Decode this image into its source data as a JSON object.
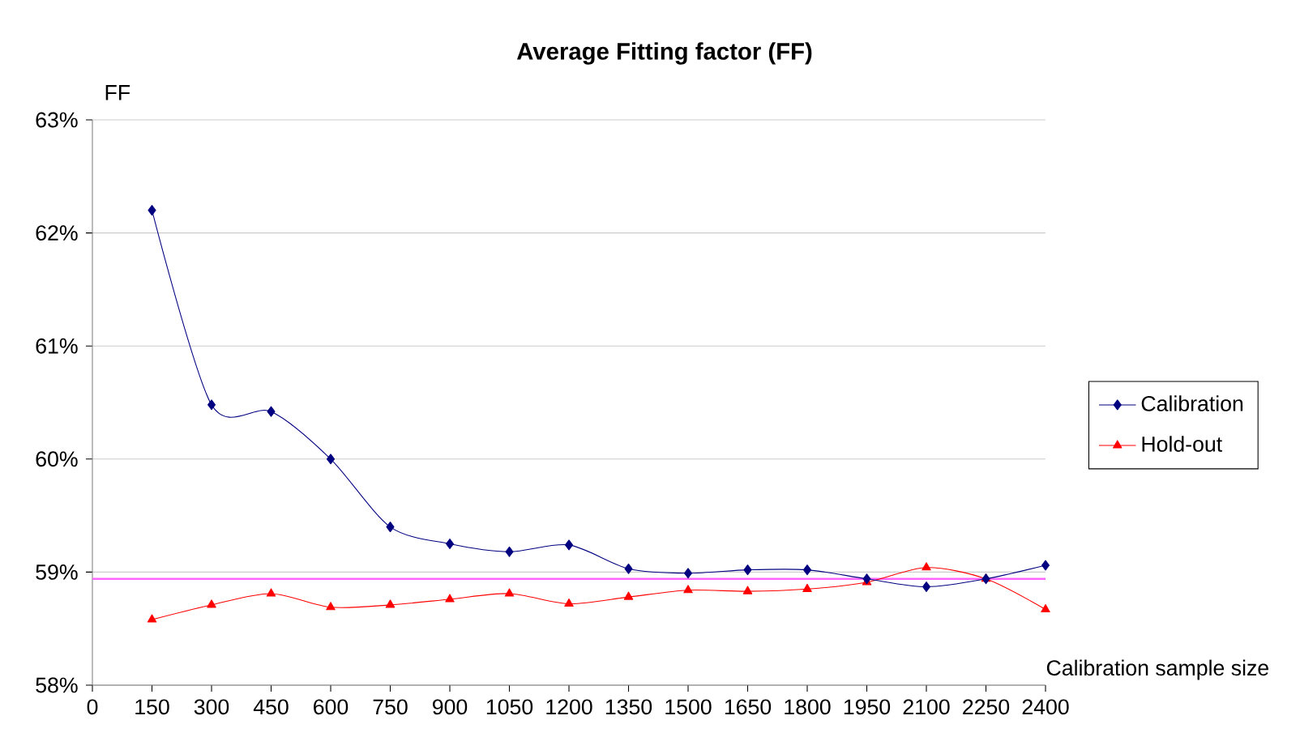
{
  "chart_data": {
    "type": "line",
    "title": "Average Fitting factor (FF)",
    "xlabel": "Calibration sample size",
    "ylabel": "FF",
    "x": [
      150,
      300,
      450,
      600,
      750,
      900,
      1050,
      1200,
      1350,
      1500,
      1650,
      1800,
      1950,
      2100,
      2250,
      2400
    ],
    "series": [
      {
        "name": "Calibration",
        "color": "#000080",
        "marker": "diamond",
        "values": [
          62.2,
          60.48,
          60.42,
          60.0,
          59.4,
          59.25,
          59.18,
          59.24,
          59.03,
          58.99,
          59.02,
          59.02,
          58.94,
          58.87,
          58.94,
          59.06
        ]
      },
      {
        "name": "Hold-out",
        "color": "#ff0000",
        "marker": "triangle",
        "values": [
          58.58,
          58.71,
          58.81,
          58.69,
          58.71,
          58.76,
          58.81,
          58.72,
          58.78,
          58.84,
          58.83,
          58.85,
          58.91,
          59.04,
          58.94,
          58.67
        ]
      }
    ],
    "xlim": [
      0,
      2400
    ],
    "xticks": [
      0,
      150,
      300,
      450,
      600,
      750,
      900,
      1050,
      1200,
      1350,
      1500,
      1650,
      1800,
      1950,
      2100,
      2250,
      2400
    ],
    "ylim": [
      58,
      63
    ],
    "yticks": [
      {
        "value": 58,
        "label": "58%"
      },
      {
        "value": 59,
        "label": "59%"
      },
      {
        "value": 60,
        "label": "60%"
      },
      {
        "value": 61,
        "label": "61%"
      },
      {
        "value": 62,
        "label": "62%"
      },
      {
        "value": 63,
        "label": "63%"
      }
    ],
    "ref_lines": [
      {
        "axis": "y",
        "value": 58.94,
        "color": "#ff66ff"
      }
    ],
    "grid": "y",
    "legend": "right"
  }
}
